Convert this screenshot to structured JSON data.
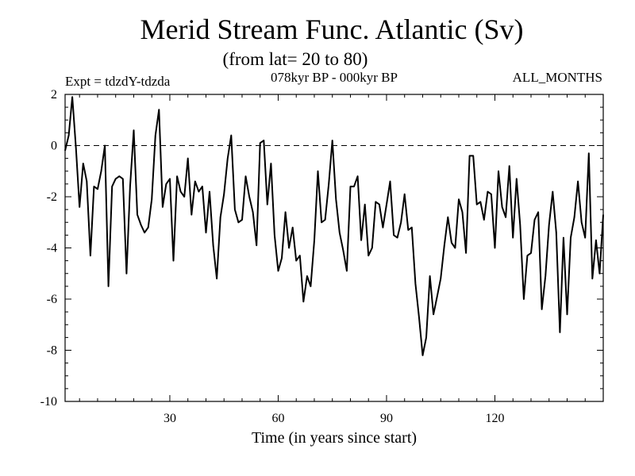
{
  "chart_data": {
    "type": "line",
    "title": "Merid Stream Func. Atlantic (Sv)",
    "subtitle": "(from lat= 20 to 80)",
    "experiment_label": "Expt = tdzdY-tdzda",
    "period_label": "078kyr BP - 000kyr BP",
    "season_label": "ALL_MONTHS",
    "xlabel": "Time (in years since start)",
    "ylabel": "",
    "xlim": [
      1,
      150
    ],
    "ylim": [
      -10,
      2
    ],
    "xticks": [
      30,
      60,
      90,
      120
    ],
    "yticks": [
      2,
      0,
      -2,
      -4,
      -6,
      -8,
      -10
    ],
    "x_minor_step": 5,
    "y_minor_step": 0.5,
    "reference_line": 0,
    "line_color": "#000000",
    "series": [
      {
        "name": "Merid Stream Func. Atlantic",
        "x_start": 1,
        "x_step": 1,
        "values": [
          -0.2,
          0.4,
          1.9,
          -0.1,
          -2.4,
          -0.7,
          -1.4,
          -4.3,
          -1.6,
          -1.7,
          -1.0,
          0.0,
          -5.5,
          -1.6,
          -1.3,
          -1.2,
          -1.3,
          -5.0,
          -1.6,
          0.6,
          -2.7,
          -3.1,
          -3.4,
          -3.2,
          -2.1,
          0.4,
          1.4,
          -2.4,
          -1.5,
          -1.3,
          -4.5,
          -1.2,
          -1.8,
          -2.0,
          -0.5,
          -2.7,
          -1.4,
          -1.8,
          -1.6,
          -3.4,
          -1.8,
          -3.9,
          -5.2,
          -2.8,
          -1.9,
          -0.5,
          0.4,
          -2.5,
          -3.0,
          -2.9,
          -1.2,
          -2.0,
          -2.6,
          -3.9,
          0.1,
          0.2,
          -2.3,
          -0.7,
          -3.5,
          -4.9,
          -4.4,
          -2.6,
          -4.0,
          -3.2,
          -4.5,
          -4.3,
          -6.1,
          -5.1,
          -5.5,
          -3.7,
          -1.0,
          -3.0,
          -2.9,
          -1.5,
          0.2,
          -2.1,
          -3.4,
          -4.1,
          -4.9,
          -1.6,
          -1.6,
          -1.2,
          -3.7,
          -2.3,
          -4.3,
          -4.0,
          -2.2,
          -2.3,
          -3.2,
          -2.3,
          -1.4,
          -3.5,
          -3.6,
          -3.0,
          -1.9,
          -3.3,
          -3.2,
          -5.4,
          -6.7,
          -8.2,
          -7.5,
          -5.1,
          -6.6,
          -5.9,
          -5.2,
          -3.9,
          -2.8,
          -3.8,
          -4.0,
          -2.1,
          -2.6,
          -4.2,
          -0.4,
          -0.4,
          -2.3,
          -2.2,
          -2.9,
          -1.8,
          -1.9,
          -4.0,
          -1.0,
          -2.4,
          -2.8,
          -0.8,
          -3.6,
          -1.3,
          -3.1,
          -6.0,
          -4.3,
          -4.2,
          -2.9,
          -2.6,
          -6.4,
          -5.1,
          -3.1,
          -1.8,
          -3.4,
          -7.3,
          -3.6,
          -6.6,
          -3.6,
          -2.8,
          -1.4,
          -3.0,
          -3.6,
          -0.3,
          -5.2,
          -3.7,
          -5.0,
          -2.7
        ]
      }
    ]
  }
}
